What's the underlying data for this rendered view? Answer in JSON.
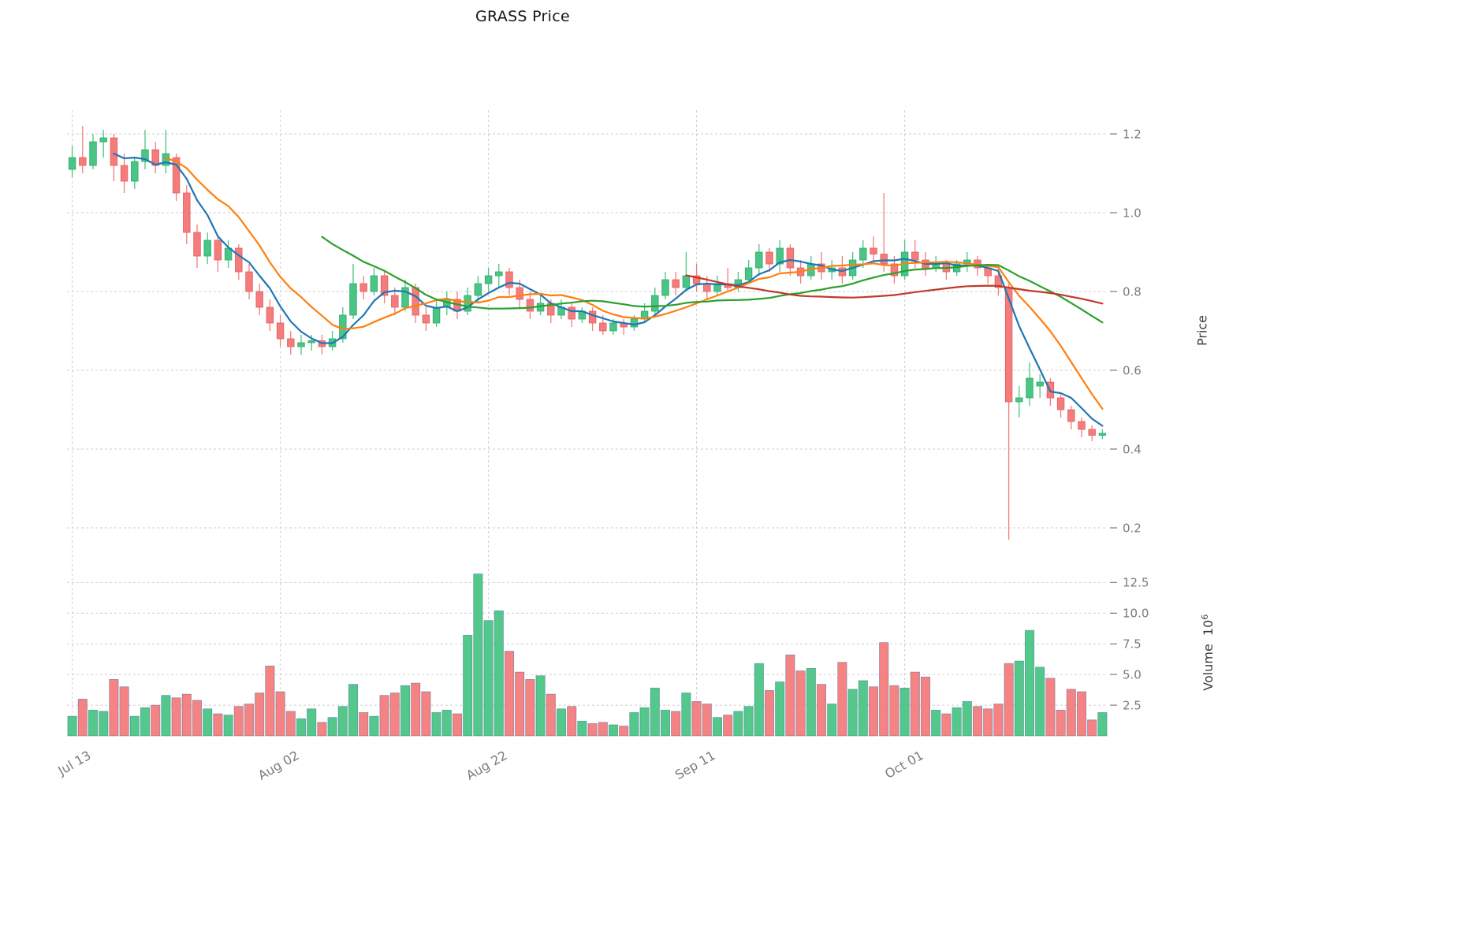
{
  "colors": {
    "up": "#4bc585",
    "down": "#f47c7c",
    "up_edge": "#2aa868",
    "down_edge": "#e25c5c",
    "volume_edge": "#2e5f8a",
    "grid": "#cfcfcf",
    "tick_text": "#7c7c7c",
    "title_text": "#151515",
    "axis_label_text": "#3c3c3c"
  },
  "chart_data": {
    "type": "candlestick",
    "title": "GRASS Price",
    "ylabel": "Price",
    "y2label": {
      "text": "Volume",
      "base": "10",
      "exp": "6"
    },
    "ylim": [
      0.14,
      1.26
    ],
    "y2lim": [
      0,
      14
    ],
    "grid": true,
    "price_ticks": [
      {
        "value": 0.2,
        "label": "0.2"
      },
      {
        "value": 0.4,
        "label": "0.4"
      },
      {
        "value": 0.6,
        "label": "0.6"
      },
      {
        "value": 0.8,
        "label": "0.8"
      },
      {
        "value": 1.0,
        "label": "1.0"
      },
      {
        "value": 1.2,
        "label": "1.2"
      }
    ],
    "volume_ticks": [
      {
        "value": 2.5,
        "label": "2.5"
      },
      {
        "value": 5.0,
        "label": "5.0"
      },
      {
        "value": 7.5,
        "label": "7.5"
      },
      {
        "value": 10.0,
        "label": "10.0"
      },
      {
        "value": 12.5,
        "label": "12.5"
      }
    ],
    "x_ticks": [
      {
        "index": 0,
        "label": "Jul 13"
      },
      {
        "index": 20,
        "label": "Aug 02"
      },
      {
        "index": 40,
        "label": "Aug 22"
      },
      {
        "index": 60,
        "label": "Sep 11"
      },
      {
        "index": 80,
        "label": "Oct 01"
      }
    ],
    "moving_averages": [
      {
        "name": "ma-fast",
        "window": 5,
        "color": "#1f77b4"
      },
      {
        "name": "ma-mid",
        "window": 10,
        "color": "#ff7f0e"
      },
      {
        "name": "ma-slow",
        "window": 25,
        "color": "#2ca02c"
      },
      {
        "name": "ma-long",
        "window": 60,
        "color": "#c0392b"
      }
    ],
    "columns": [
      "date",
      "open",
      "high",
      "low",
      "close",
      "volume_millions"
    ],
    "rows": [
      [
        "Jul 13",
        1.11,
        1.17,
        1.09,
        1.14,
        1.6
      ],
      [
        "Jul 14",
        1.14,
        1.22,
        1.1,
        1.12,
        3.0
      ],
      [
        "Jul 15",
        1.12,
        1.2,
        1.11,
        1.18,
        2.1
      ],
      [
        "Jul 16",
        1.18,
        1.21,
        1.14,
        1.19,
        2.0
      ],
      [
        "Jul 17",
        1.19,
        1.2,
        1.08,
        1.12,
        4.6
      ],
      [
        "Jul 18",
        1.12,
        1.15,
        1.05,
        1.08,
        4.0
      ],
      [
        "Jul 19",
        1.08,
        1.14,
        1.06,
        1.13,
        1.6
      ],
      [
        "Jul 20",
        1.13,
        1.21,
        1.11,
        1.16,
        2.3
      ],
      [
        "Jul 21",
        1.16,
        1.18,
        1.1,
        1.12,
        2.5
      ],
      [
        "Jul 22",
        1.12,
        1.21,
        1.1,
        1.15,
        3.3
      ],
      [
        "Jul 23",
        1.14,
        1.15,
        1.03,
        1.05,
        3.1
      ],
      [
        "Jul 24",
        1.05,
        1.07,
        0.92,
        0.95,
        3.4
      ],
      [
        "Jul 25",
        0.95,
        0.97,
        0.86,
        0.89,
        2.9
      ],
      [
        "Jul 26",
        0.89,
        0.95,
        0.87,
        0.93,
        2.2
      ],
      [
        "Jul 27",
        0.93,
        0.94,
        0.85,
        0.88,
        1.8
      ],
      [
        "Jul 28",
        0.88,
        0.93,
        0.86,
        0.91,
        1.7
      ],
      [
        "Jul 29",
        0.91,
        0.92,
        0.83,
        0.85,
        2.4
      ],
      [
        "Jul 30",
        0.85,
        0.87,
        0.78,
        0.8,
        2.6
      ],
      [
        "Jul 31",
        0.8,
        0.82,
        0.74,
        0.76,
        3.5
      ],
      [
        "Aug 01",
        0.76,
        0.78,
        0.7,
        0.72,
        5.7
      ],
      [
        "Aug 02",
        0.72,
        0.74,
        0.66,
        0.68,
        3.6
      ],
      [
        "Aug 03",
        0.68,
        0.7,
        0.64,
        0.66,
        2.0
      ],
      [
        "Aug 04",
        0.66,
        0.69,
        0.64,
        0.67,
        1.4
      ],
      [
        "Aug 05",
        0.67,
        0.69,
        0.65,
        0.675,
        2.2
      ],
      [
        "Aug 06",
        0.675,
        0.69,
        0.64,
        0.66,
        1.1
      ],
      [
        "Aug 07",
        0.66,
        0.7,
        0.65,
        0.68,
        1.5
      ],
      [
        "Aug 08",
        0.68,
        0.76,
        0.67,
        0.74,
        2.4
      ],
      [
        "Aug 09",
        0.74,
        0.87,
        0.73,
        0.82,
        4.2
      ],
      [
        "Aug 10",
        0.82,
        0.84,
        0.78,
        0.8,
        1.9
      ],
      [
        "Aug 11",
        0.8,
        0.86,
        0.79,
        0.84,
        1.6
      ],
      [
        "Aug 12",
        0.84,
        0.85,
        0.77,
        0.79,
        3.3
      ],
      [
        "Aug 13",
        0.79,
        0.81,
        0.74,
        0.76,
        3.5
      ],
      [
        "Aug 14",
        0.76,
        0.83,
        0.75,
        0.81,
        4.1
      ],
      [
        "Aug 15",
        0.81,
        0.82,
        0.72,
        0.74,
        4.3
      ],
      [
        "Aug 16",
        0.74,
        0.76,
        0.7,
        0.72,
        3.6
      ],
      [
        "Aug 17",
        0.72,
        0.78,
        0.71,
        0.76,
        1.9
      ],
      [
        "Aug 18",
        0.76,
        0.8,
        0.74,
        0.78,
        2.1
      ],
      [
        "Aug 19",
        0.78,
        0.8,
        0.73,
        0.75,
        1.8
      ],
      [
        "Aug 20",
        0.75,
        0.81,
        0.74,
        0.79,
        8.2
      ],
      [
        "Aug 21",
        0.79,
        0.84,
        0.77,
        0.82,
        13.2
      ],
      [
        "Aug 22",
        0.82,
        0.86,
        0.8,
        0.84,
        9.4
      ],
      [
        "Aug 23",
        0.84,
        0.87,
        0.81,
        0.85,
        10.2
      ],
      [
        "Aug 24",
        0.85,
        0.86,
        0.79,
        0.81,
        6.9
      ],
      [
        "Aug 25",
        0.81,
        0.83,
        0.76,
        0.78,
        5.2
      ],
      [
        "Aug 26",
        0.78,
        0.8,
        0.73,
        0.75,
        4.6
      ],
      [
        "Aug 27",
        0.75,
        0.79,
        0.74,
        0.77,
        4.9
      ],
      [
        "Aug 28",
        0.77,
        0.78,
        0.72,
        0.74,
        3.4
      ],
      [
        "Aug 29",
        0.74,
        0.78,
        0.73,
        0.76,
        2.2
      ],
      [
        "Aug 30",
        0.76,
        0.77,
        0.71,
        0.73,
        2.4
      ],
      [
        "Aug 31",
        0.73,
        0.76,
        0.72,
        0.75,
        1.2
      ],
      [
        "Sep 01",
        0.75,
        0.76,
        0.7,
        0.72,
        1.0
      ],
      [
        "Sep 02",
        0.72,
        0.74,
        0.69,
        0.7,
        1.1
      ],
      [
        "Sep 03",
        0.7,
        0.73,
        0.69,
        0.72,
        0.9
      ],
      [
        "Sep 04",
        0.72,
        0.73,
        0.69,
        0.71,
        0.8
      ],
      [
        "Sep 05",
        0.71,
        0.74,
        0.7,
        0.73,
        1.9
      ],
      [
        "Sep 06",
        0.73,
        0.77,
        0.72,
        0.75,
        2.3
      ],
      [
        "Sep 07",
        0.75,
        0.81,
        0.74,
        0.79,
        3.9
      ],
      [
        "Sep 08",
        0.79,
        0.85,
        0.78,
        0.83,
        2.1
      ],
      [
        "Sep 09",
        0.83,
        0.85,
        0.79,
        0.81,
        2.0
      ],
      [
        "Sep 10",
        0.81,
        0.9,
        0.8,
        0.84,
        3.5
      ],
      [
        "Sep 11",
        0.84,
        0.87,
        0.8,
        0.82,
        2.8
      ],
      [
        "Sep 12",
        0.82,
        0.84,
        0.78,
        0.8,
        2.6
      ],
      [
        "Sep 13",
        0.8,
        0.84,
        0.79,
        0.82,
        1.5
      ],
      [
        "Sep 14",
        0.82,
        0.86,
        0.8,
        0.81,
        1.7
      ],
      [
        "Sep 15",
        0.81,
        0.85,
        0.8,
        0.83,
        2.0
      ],
      [
        "Sep 16",
        0.83,
        0.88,
        0.82,
        0.86,
        2.4
      ],
      [
        "Sep 17",
        0.86,
        0.92,
        0.84,
        0.9,
        5.9
      ],
      [
        "Sep 18",
        0.9,
        0.91,
        0.85,
        0.87,
        3.7
      ],
      [
        "Sep 19",
        0.87,
        0.93,
        0.85,
        0.91,
        4.4
      ],
      [
        "Sep 20",
        0.91,
        0.92,
        0.84,
        0.86,
        6.6
      ],
      [
        "Sep 21",
        0.86,
        0.88,
        0.82,
        0.84,
        5.3
      ],
      [
        "Sep 22",
        0.84,
        0.89,
        0.83,
        0.87,
        5.5
      ],
      [
        "Sep 23",
        0.87,
        0.9,
        0.83,
        0.85,
        4.2
      ],
      [
        "Sep 24",
        0.85,
        0.88,
        0.83,
        0.86,
        2.6
      ],
      [
        "Sep 25",
        0.86,
        0.89,
        0.82,
        0.84,
        6.0
      ],
      [
        "Sep 26",
        0.84,
        0.9,
        0.83,
        0.88,
        3.8
      ],
      [
        "Sep 27",
        0.88,
        0.93,
        0.86,
        0.91,
        4.5
      ],
      [
        "Sep 28",
        0.91,
        0.94,
        0.87,
        0.895,
        4.0
      ],
      [
        "Sep 29",
        0.895,
        1.05,
        0.85,
        0.87,
        7.6
      ],
      [
        "Sep 30",
        0.87,
        0.89,
        0.82,
        0.84,
        4.1
      ],
      [
        "Oct 01",
        0.84,
        0.93,
        0.83,
        0.9,
        3.9
      ],
      [
        "Oct 02",
        0.9,
        0.93,
        0.86,
        0.88,
        5.2
      ],
      [
        "Oct 03",
        0.88,
        0.9,
        0.84,
        0.86,
        4.8
      ],
      [
        "Oct 04",
        0.86,
        0.89,
        0.85,
        0.87,
        2.1
      ],
      [
        "Oct 05",
        0.87,
        0.88,
        0.83,
        0.85,
        1.8
      ],
      [
        "Oct 06",
        0.85,
        0.88,
        0.84,
        0.87,
        2.3
      ],
      [
        "Oct 07",
        0.87,
        0.9,
        0.85,
        0.88,
        2.8
      ],
      [
        "Oct 08",
        0.88,
        0.89,
        0.84,
        0.86,
        2.4
      ],
      [
        "Oct 09",
        0.86,
        0.87,
        0.82,
        0.84,
        2.2
      ],
      [
        "Oct 10",
        0.84,
        0.86,
        0.79,
        0.81,
        2.6
      ],
      [
        "Oct 11",
        0.81,
        0.82,
        0.17,
        0.52,
        5.9
      ],
      [
        "Oct 12",
        0.52,
        0.56,
        0.48,
        0.53,
        6.1
      ],
      [
        "Oct 13",
        0.53,
        0.62,
        0.51,
        0.58,
        8.6
      ],
      [
        "Oct 14",
        0.56,
        0.59,
        0.53,
        0.57,
        5.6
      ],
      [
        "Oct 15",
        0.57,
        0.58,
        0.51,
        0.53,
        4.7
      ],
      [
        "Oct 16",
        0.53,
        0.54,
        0.48,
        0.5,
        2.1
      ],
      [
        "Oct 17",
        0.5,
        0.51,
        0.45,
        0.47,
        3.8
      ],
      [
        "Oct 18",
        0.47,
        0.48,
        0.43,
        0.45,
        3.6
      ],
      [
        "Oct 19",
        0.45,
        0.46,
        0.42,
        0.435,
        1.3
      ],
      [
        "Oct 20",
        0.435,
        0.45,
        0.425,
        0.44,
        1.9
      ]
    ]
  }
}
